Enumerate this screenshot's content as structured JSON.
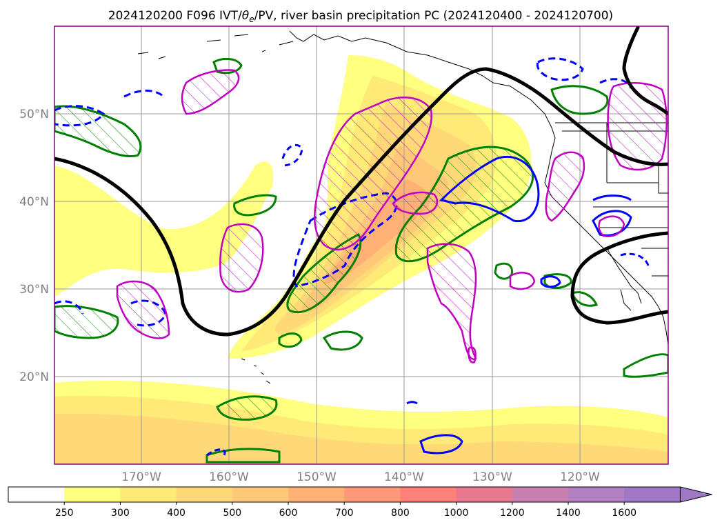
{
  "title": "2024120200 F096 IVT/",
  "title_theta": "θ",
  "title_sub": "e",
  "title_rest": "/PV, river basin precipitation PC (2024120400 - 2024120700)",
  "map": {
    "lat_labels": [
      "50°N",
      "40°N",
      "30°N",
      "20°N"
    ],
    "lon_labels": [
      "170°W",
      "160°W",
      "150°W",
      "140°W",
      "130°W",
      "120°W"
    ]
  },
  "colorbar": {
    "levels": [
      "250",
      "300",
      "400",
      "500",
      "600",
      "700",
      "800",
      "1000",
      "1200",
      "1400",
      "1600"
    ],
    "colors": [
      "#ffffff",
      "#ffff80",
      "#ffea78",
      "#ffd878",
      "#ffc878",
      "#ffb074",
      "#ff9878",
      "#ff8078",
      "#e87890",
      "#c880b0",
      "#b080c0",
      "#a078c8"
    ],
    "extend": "max"
  },
  "contour_colors": {
    "theta_e": "#000000",
    "pv": "#c000c0",
    "precip_positive": "#008000",
    "precip_negative": "#0000ff"
  }
}
